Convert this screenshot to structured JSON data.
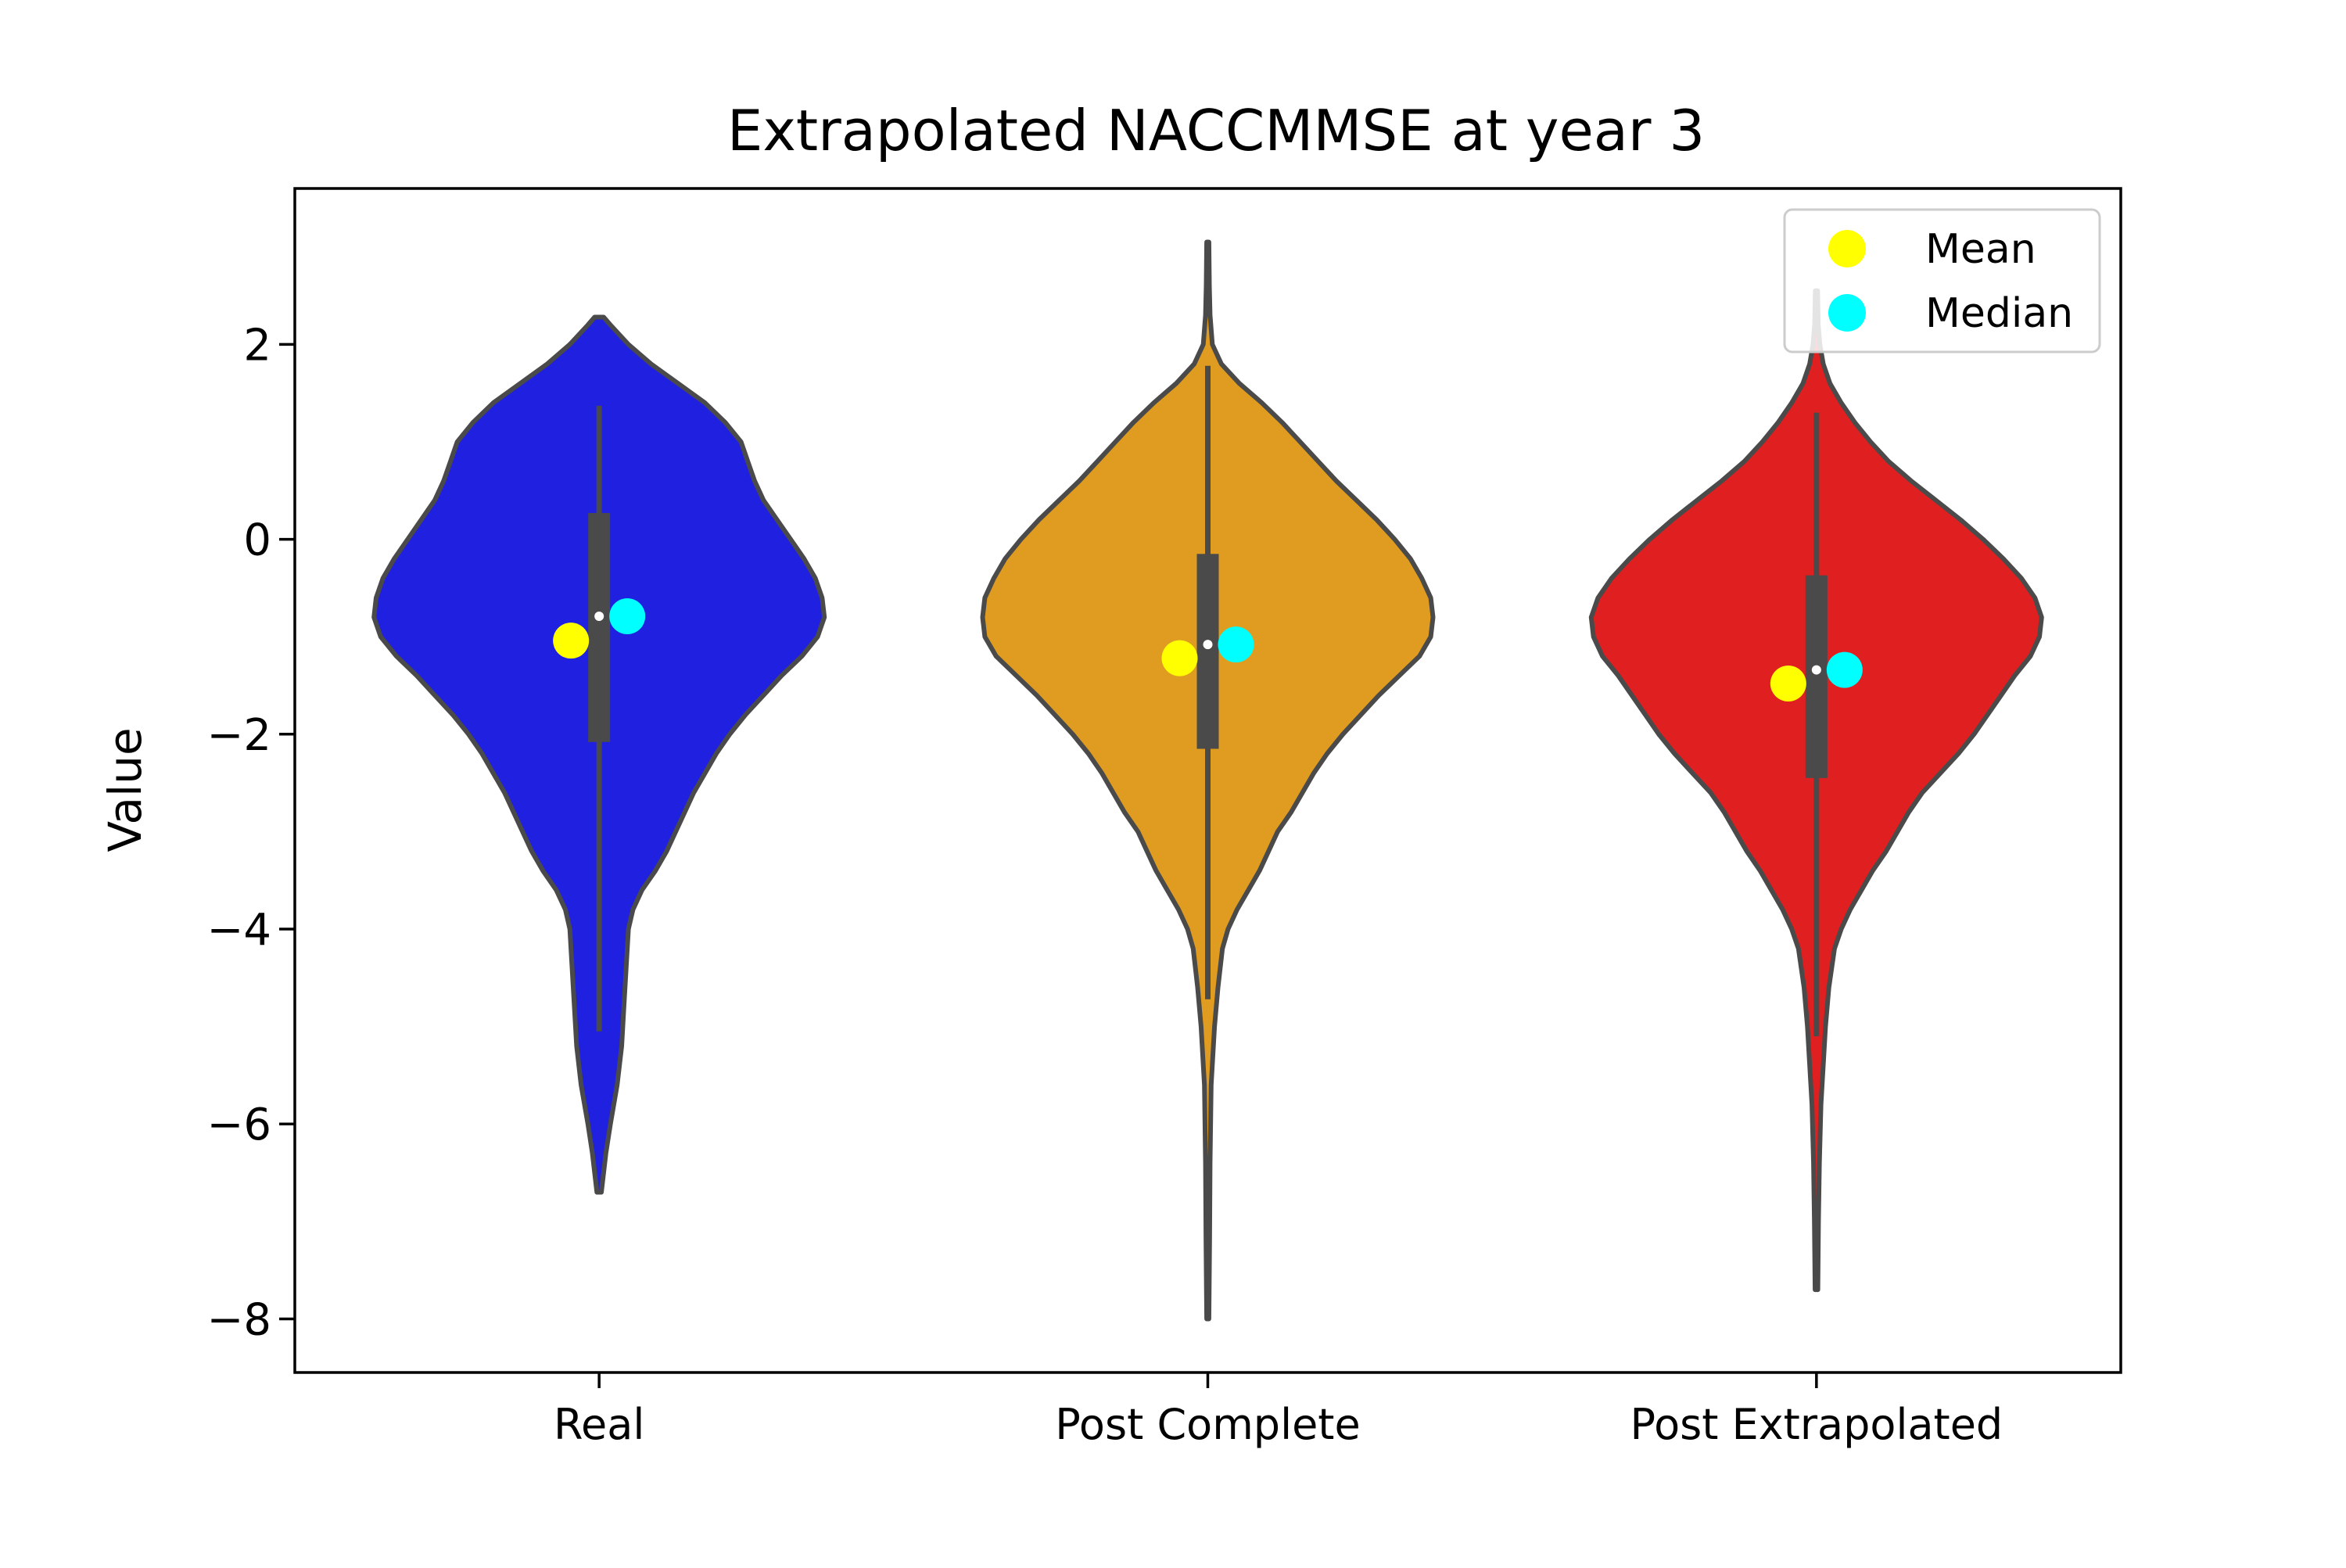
{
  "chart_data": {
    "type": "violin",
    "title": "Extrapolated NACCMMSE at year 3",
    "xlabel": "",
    "ylabel": "Value",
    "ylim": [
      -8.55,
      3.6
    ],
    "yticks": [
      2,
      0,
      -2,
      -4,
      -6,
      -8
    ],
    "ytick_labels": [
      "2",
      "0",
      "−2",
      "−4",
      "−6",
      "−8"
    ],
    "categories": [
      "Real",
      "Post Complete",
      "Post Extrapolated"
    ],
    "grid": false,
    "legend": {
      "position": "top-right",
      "entries": [
        {
          "label": "Mean",
          "color": "#ffff00"
        },
        {
          "label": "Median",
          "color": "#00ffff"
        }
      ]
    },
    "colors": {
      "violin_edge": "#4a4a4a",
      "box": "#4a4a4a",
      "mean": "#ffff00",
      "median_marker": "#00ffff"
    },
    "series": [
      {
        "category": "Real",
        "color": "#2020e0",
        "mean": -1.04,
        "median": -0.79,
        "q1": -2.08,
        "q3": 0.27,
        "whisker_low": -5.05,
        "whisker_high": 1.37,
        "density": [
          [
            2.28,
            0.02
          ],
          [
            2.2,
            0.05
          ],
          [
            2.0,
            0.13
          ],
          [
            1.8,
            0.23
          ],
          [
            1.6,
            0.35
          ],
          [
            1.4,
            0.47
          ],
          [
            1.2,
            0.56
          ],
          [
            1.0,
            0.63
          ],
          [
            0.8,
            0.66
          ],
          [
            0.6,
            0.69
          ],
          [
            0.4,
            0.73
          ],
          [
            0.2,
            0.79
          ],
          [
            0.0,
            0.85
          ],
          [
            -0.2,
            0.91
          ],
          [
            -0.4,
            0.96
          ],
          [
            -0.6,
            0.99
          ],
          [
            -0.8,
            1.0
          ],
          [
            -1.0,
            0.97
          ],
          [
            -1.2,
            0.9
          ],
          [
            -1.4,
            0.81
          ],
          [
            -1.6,
            0.73
          ],
          [
            -1.8,
            0.65
          ],
          [
            -2.0,
            0.58
          ],
          [
            -2.2,
            0.52
          ],
          [
            -2.4,
            0.47
          ],
          [
            -2.6,
            0.42
          ],
          [
            -2.8,
            0.38
          ],
          [
            -3.0,
            0.34
          ],
          [
            -3.2,
            0.3
          ],
          [
            -3.4,
            0.25
          ],
          [
            -3.6,
            0.19
          ],
          [
            -3.8,
            0.15
          ],
          [
            -4.0,
            0.13
          ],
          [
            -4.4,
            0.12
          ],
          [
            -4.8,
            0.11
          ],
          [
            -5.2,
            0.1
          ],
          [
            -5.6,
            0.08
          ],
          [
            -6.0,
            0.05
          ],
          [
            -6.3,
            0.03
          ],
          [
            -6.7,
            0.01
          ]
        ]
      },
      {
        "category": "Post Complete",
        "color": "#e09c20",
        "mean": -1.22,
        "median": -1.08,
        "q1": -2.15,
        "q3": -0.15,
        "whisker_low": -4.72,
        "whisker_high": 1.78,
        "density": [
          [
            3.05,
            0.005
          ],
          [
            2.6,
            0.007
          ],
          [
            2.3,
            0.01
          ],
          [
            2.0,
            0.02
          ],
          [
            1.8,
            0.06
          ],
          [
            1.6,
            0.14
          ],
          [
            1.4,
            0.24
          ],
          [
            1.2,
            0.33
          ],
          [
            1.0,
            0.41
          ],
          [
            0.8,
            0.49
          ],
          [
            0.6,
            0.57
          ],
          [
            0.4,
            0.66
          ],
          [
            0.2,
            0.75
          ],
          [
            0.0,
            0.83
          ],
          [
            -0.2,
            0.9
          ],
          [
            -0.4,
            0.95
          ],
          [
            -0.6,
            0.99
          ],
          [
            -0.8,
            1.0
          ],
          [
            -1.0,
            0.99
          ],
          [
            -1.2,
            0.94
          ],
          [
            -1.4,
            0.85
          ],
          [
            -1.6,
            0.76
          ],
          [
            -1.8,
            0.68
          ],
          [
            -2.0,
            0.6
          ],
          [
            -2.2,
            0.53
          ],
          [
            -2.4,
            0.47
          ],
          [
            -2.6,
            0.42
          ],
          [
            -2.8,
            0.37
          ],
          [
            -3.0,
            0.31
          ],
          [
            -3.2,
            0.27
          ],
          [
            -3.4,
            0.23
          ],
          [
            -3.6,
            0.18
          ],
          [
            -3.8,
            0.13
          ],
          [
            -4.0,
            0.09
          ],
          [
            -4.2,
            0.065
          ],
          [
            -4.6,
            0.045
          ],
          [
            -5.0,
            0.03
          ],
          [
            -5.6,
            0.015
          ],
          [
            -6.4,
            0.01
          ],
          [
            -7.2,
            0.008
          ],
          [
            -8.0,
            0.005
          ]
        ]
      },
      {
        "category": "Post Extrapolated",
        "color": "#e02020",
        "mean": -1.48,
        "median": -1.34,
        "q1": -2.45,
        "q3": -0.37,
        "whisker_low": -5.1,
        "whisker_high": 1.3,
        "density": [
          [
            2.55,
            0.005
          ],
          [
            2.2,
            0.008
          ],
          [
            2.0,
            0.015
          ],
          [
            1.8,
            0.03
          ],
          [
            1.6,
            0.06
          ],
          [
            1.4,
            0.11
          ],
          [
            1.2,
            0.17
          ],
          [
            1.0,
            0.24
          ],
          [
            0.8,
            0.32
          ],
          [
            0.6,
            0.42
          ],
          [
            0.4,
            0.53
          ],
          [
            0.2,
            0.64
          ],
          [
            0.0,
            0.74
          ],
          [
            -0.2,
            0.83
          ],
          [
            -0.4,
            0.91
          ],
          [
            -0.6,
            0.97
          ],
          [
            -0.8,
            1.0
          ],
          [
            -1.0,
            0.99
          ],
          [
            -1.2,
            0.95
          ],
          [
            -1.4,
            0.88
          ],
          [
            -1.6,
            0.82
          ],
          [
            -1.8,
            0.76
          ],
          [
            -2.0,
            0.7
          ],
          [
            -2.2,
            0.63
          ],
          [
            -2.4,
            0.55
          ],
          [
            -2.6,
            0.47
          ],
          [
            -2.8,
            0.41
          ],
          [
            -3.0,
            0.36
          ],
          [
            -3.2,
            0.31
          ],
          [
            -3.4,
            0.25
          ],
          [
            -3.6,
            0.2
          ],
          [
            -3.8,
            0.15
          ],
          [
            -4.0,
            0.11
          ],
          [
            -4.2,
            0.08
          ],
          [
            -4.6,
            0.055
          ],
          [
            -5.0,
            0.04
          ],
          [
            -5.4,
            0.03
          ],
          [
            -5.8,
            0.02
          ],
          [
            -6.4,
            0.013
          ],
          [
            -7.0,
            0.009
          ],
          [
            -7.7,
            0.006
          ]
        ]
      }
    ]
  }
}
